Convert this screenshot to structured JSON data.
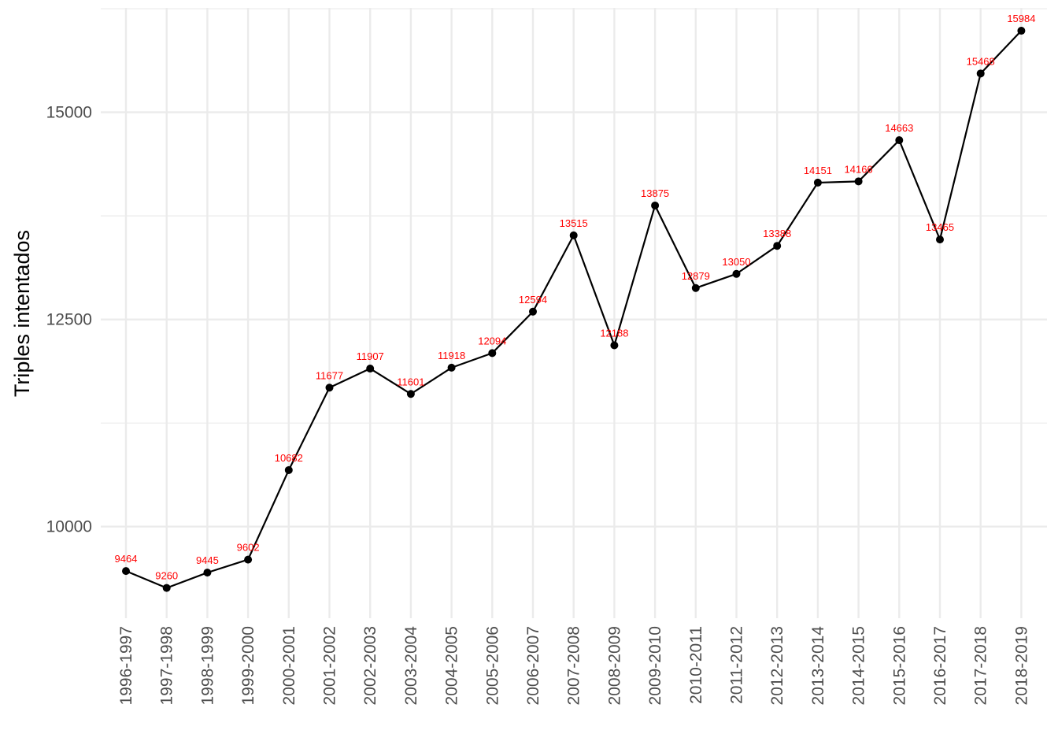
{
  "chart_data": {
    "type": "line",
    "title": "",
    "xlabel": "",
    "ylabel": "Triples intentados",
    "categories": [
      "1996-1997",
      "1997-1998",
      "1998-1999",
      "1999-2000",
      "2000-2001",
      "2001-2002",
      "2002-2003",
      "2003-2004",
      "2004-2005",
      "2005-2006",
      "2006-2007",
      "2007-2008",
      "2008-2009",
      "2009-2010",
      "2010-2011",
      "2011-2012",
      "2012-2013",
      "2013-2014",
      "2014-2015",
      "2015-2016",
      "2016-2017",
      "2017-2018",
      "2018-2019"
    ],
    "values": [
      9464,
      9260,
      9445,
      9602,
      10682,
      11677,
      11907,
      11601,
      11918,
      12094,
      12594,
      13515,
      12188,
      13875,
      12879,
      13050,
      13388,
      14151,
      14166,
      14663,
      13465,
      15468,
      15984
    ],
    "data_labels": [
      "9464",
      "9260",
      "9445",
      "9602",
      "10682",
      "11677",
      "11907",
      "11601",
      "11918",
      "12094",
      "12594",
      "13515",
      "12188",
      "13875",
      "12879",
      "13050",
      "13388",
      "14151",
      "14166",
      "14663",
      "13465",
      "15468",
      "15984"
    ],
    "yticks": [
      10000,
      12500,
      15000
    ],
    "ytick_labels": [
      "10000",
      "12500",
      "15000"
    ],
    "ylim": [
      8895,
      16260
    ],
    "grid": true,
    "legend": "none",
    "colors": {
      "line": "#000000",
      "points": "#000000",
      "data_labels": "#ff0000",
      "grid": "#ebebeb",
      "tick_text": "#4d4d4d",
      "axis_title": "#000000"
    }
  }
}
